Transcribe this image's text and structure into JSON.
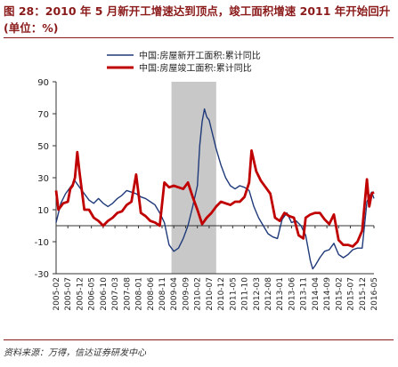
{
  "title": "图 28：2010 年 5 月新开工增速达到顶点，竣工面积增速 2011 年开始回升 (单位：%)",
  "source": "资料来源：万得，信达证券研发中心",
  "colors": {
    "title": "#8b1a1a",
    "series1": "#1f3a7a",
    "series2": "#c00000",
    "shade": "#c8c8c8"
  },
  "chart_data": {
    "type": "line",
    "ylim": [
      -30,
      90
    ],
    "yticks": [
      -30,
      -10,
      10,
      30,
      50,
      70,
      90
    ],
    "grid": false,
    "legend_position": "top",
    "xticks": [
      "2005-02",
      "2005-07",
      "2005-12",
      "2006-05",
      "2006-10",
      "2007-03",
      "2007-08",
      "2008-01",
      "2008-06",
      "2008-11",
      "2009-04",
      "2009-09",
      "2010-02",
      "2010-07",
      "2010-12",
      "2011-05",
      "2011-10",
      "2012-03",
      "2012-08",
      "2013-01",
      "2013-06",
      "2013-11",
      "2014-04",
      "2014-09",
      "2015-02",
      "2015-07",
      "2015-12",
      "2016-05"
    ],
    "shaded_range": [
      "2009-03",
      "2010-10"
    ],
    "series": [
      {
        "name": "中国:房屋新开工面积:累计同比",
        "color": "#1f3a7a",
        "points": [
          [
            "2005-02",
            2
          ],
          [
            "2005-04",
            14
          ],
          [
            "2005-06",
            20
          ],
          [
            "2005-08",
            24
          ],
          [
            "2005-10",
            28
          ],
          [
            "2005-12",
            24
          ],
          [
            "2006-02",
            20
          ],
          [
            "2006-04",
            16
          ],
          [
            "2006-06",
            14
          ],
          [
            "2006-08",
            17
          ],
          [
            "2006-10",
            14
          ],
          [
            "2006-12",
            12
          ],
          [
            "2007-02",
            14
          ],
          [
            "2007-04",
            17
          ],
          [
            "2007-06",
            19
          ],
          [
            "2007-08",
            22
          ],
          [
            "2007-10",
            21
          ],
          [
            "2007-12",
            20
          ],
          [
            "2008-02",
            18
          ],
          [
            "2008-04",
            17
          ],
          [
            "2008-06",
            15
          ],
          [
            "2008-08",
            13
          ],
          [
            "2008-10",
            8
          ],
          [
            "2008-12",
            2
          ],
          [
            "2009-02",
            -12
          ],
          [
            "2009-04",
            -16
          ],
          [
            "2009-06",
            -14
          ],
          [
            "2009-08",
            -8
          ],
          [
            "2009-10",
            0
          ],
          [
            "2009-12",
            12
          ],
          [
            "2010-02",
            25
          ],
          [
            "2010-03",
            50
          ],
          [
            "2010-04",
            65
          ],
          [
            "2010-05",
            73
          ],
          [
            "2010-06",
            68
          ],
          [
            "2010-07",
            66
          ],
          [
            "2010-08",
            60
          ],
          [
            "2010-10",
            48
          ],
          [
            "2010-12",
            38
          ],
          [
            "2011-02",
            30
          ],
          [
            "2011-04",
            25
          ],
          [
            "2011-06",
            23
          ],
          [
            "2011-08",
            25
          ],
          [
            "2011-10",
            24
          ],
          [
            "2011-12",
            22
          ],
          [
            "2012-02",
            12
          ],
          [
            "2012-04",
            5
          ],
          [
            "2012-06",
            0
          ],
          [
            "2012-08",
            -5
          ],
          [
            "2012-10",
            -7
          ],
          [
            "2012-12",
            -8
          ],
          [
            "2013-02",
            4
          ],
          [
            "2013-04",
            8
          ],
          [
            "2013-06",
            2
          ],
          [
            "2013-08",
            3
          ],
          [
            "2013-10",
            0
          ],
          [
            "2013-12",
            -6
          ],
          [
            "2014-02",
            -22
          ],
          [
            "2014-03",
            -27
          ],
          [
            "2014-04",
            -25
          ],
          [
            "2014-06",
            -20
          ],
          [
            "2014-08",
            -16
          ],
          [
            "2014-10",
            -15
          ],
          [
            "2014-12",
            -11
          ],
          [
            "2015-02",
            -18
          ],
          [
            "2015-04",
            -20
          ],
          [
            "2015-06",
            -18
          ],
          [
            "2015-08",
            -15
          ],
          [
            "2015-10",
            -14
          ],
          [
            "2015-12",
            -14
          ],
          [
            "2016-02",
            15
          ],
          [
            "2016-03",
            18
          ],
          [
            "2016-04",
            21
          ],
          [
            "2016-05",
            17
          ]
        ]
      },
      {
        "name": "中国:房屋竣工面积:累计同比",
        "color": "#c00000",
        "points": [
          [
            "2005-02",
            22
          ],
          [
            "2005-03",
            10
          ],
          [
            "2005-05",
            14
          ],
          [
            "2005-07",
            15
          ],
          [
            "2005-08",
            23
          ],
          [
            "2005-09",
            25
          ],
          [
            "2005-10",
            30
          ],
          [
            "2005-11",
            46
          ],
          [
            "2005-12",
            33
          ],
          [
            "2006-02",
            10
          ],
          [
            "2006-04",
            10
          ],
          [
            "2006-06",
            5
          ],
          [
            "2006-08",
            3
          ],
          [
            "2006-10",
            0
          ],
          [
            "2006-12",
            3
          ],
          [
            "2007-02",
            5
          ],
          [
            "2007-04",
            8
          ],
          [
            "2007-06",
            9
          ],
          [
            "2007-08",
            13
          ],
          [
            "2007-10",
            15
          ],
          [
            "2007-12",
            32
          ],
          [
            "2008-02",
            8
          ],
          [
            "2008-04",
            6
          ],
          [
            "2008-06",
            3
          ],
          [
            "2008-08",
            2
          ],
          [
            "2008-10",
            0
          ],
          [
            "2008-12",
            27
          ],
          [
            "2009-02",
            24
          ],
          [
            "2009-04",
            25
          ],
          [
            "2009-06",
            24
          ],
          [
            "2009-08",
            23
          ],
          [
            "2009-10",
            27
          ],
          [
            "2009-12",
            18
          ],
          [
            "2010-02",
            10
          ],
          [
            "2010-04",
            1
          ],
          [
            "2010-06",
            5
          ],
          [
            "2010-08",
            8
          ],
          [
            "2010-10",
            12
          ],
          [
            "2010-12",
            15
          ],
          [
            "2011-02",
            14
          ],
          [
            "2011-04",
            13
          ],
          [
            "2011-06",
            15
          ],
          [
            "2011-08",
            15
          ],
          [
            "2011-10",
            18
          ],
          [
            "2011-12",
            27
          ],
          [
            "2012-01",
            47
          ],
          [
            "2012-03",
            34
          ],
          [
            "2012-05",
            28
          ],
          [
            "2012-07",
            24
          ],
          [
            "2012-09",
            20
          ],
          [
            "2012-11",
            5
          ],
          [
            "2013-01",
            3
          ],
          [
            "2013-03",
            8
          ],
          [
            "2013-05",
            6
          ],
          [
            "2013-07",
            5
          ],
          [
            "2013-09",
            -6
          ],
          [
            "2013-11",
            -8
          ],
          [
            "2013-12",
            5
          ],
          [
            "2014-02",
            7
          ],
          [
            "2014-04",
            8
          ],
          [
            "2014-06",
            8
          ],
          [
            "2014-08",
            4
          ],
          [
            "2014-10",
            1
          ],
          [
            "2014-12",
            7
          ],
          [
            "2015-02",
            -9
          ],
          [
            "2015-04",
            -12
          ],
          [
            "2015-06",
            -12
          ],
          [
            "2015-08",
            -13
          ],
          [
            "2015-10",
            -10
          ],
          [
            "2015-12",
            -3
          ],
          [
            "2016-02",
            29
          ],
          [
            "2016-03",
            12
          ],
          [
            "2016-04",
            20
          ],
          [
            "2016-05",
            21
          ]
        ]
      }
    ]
  }
}
